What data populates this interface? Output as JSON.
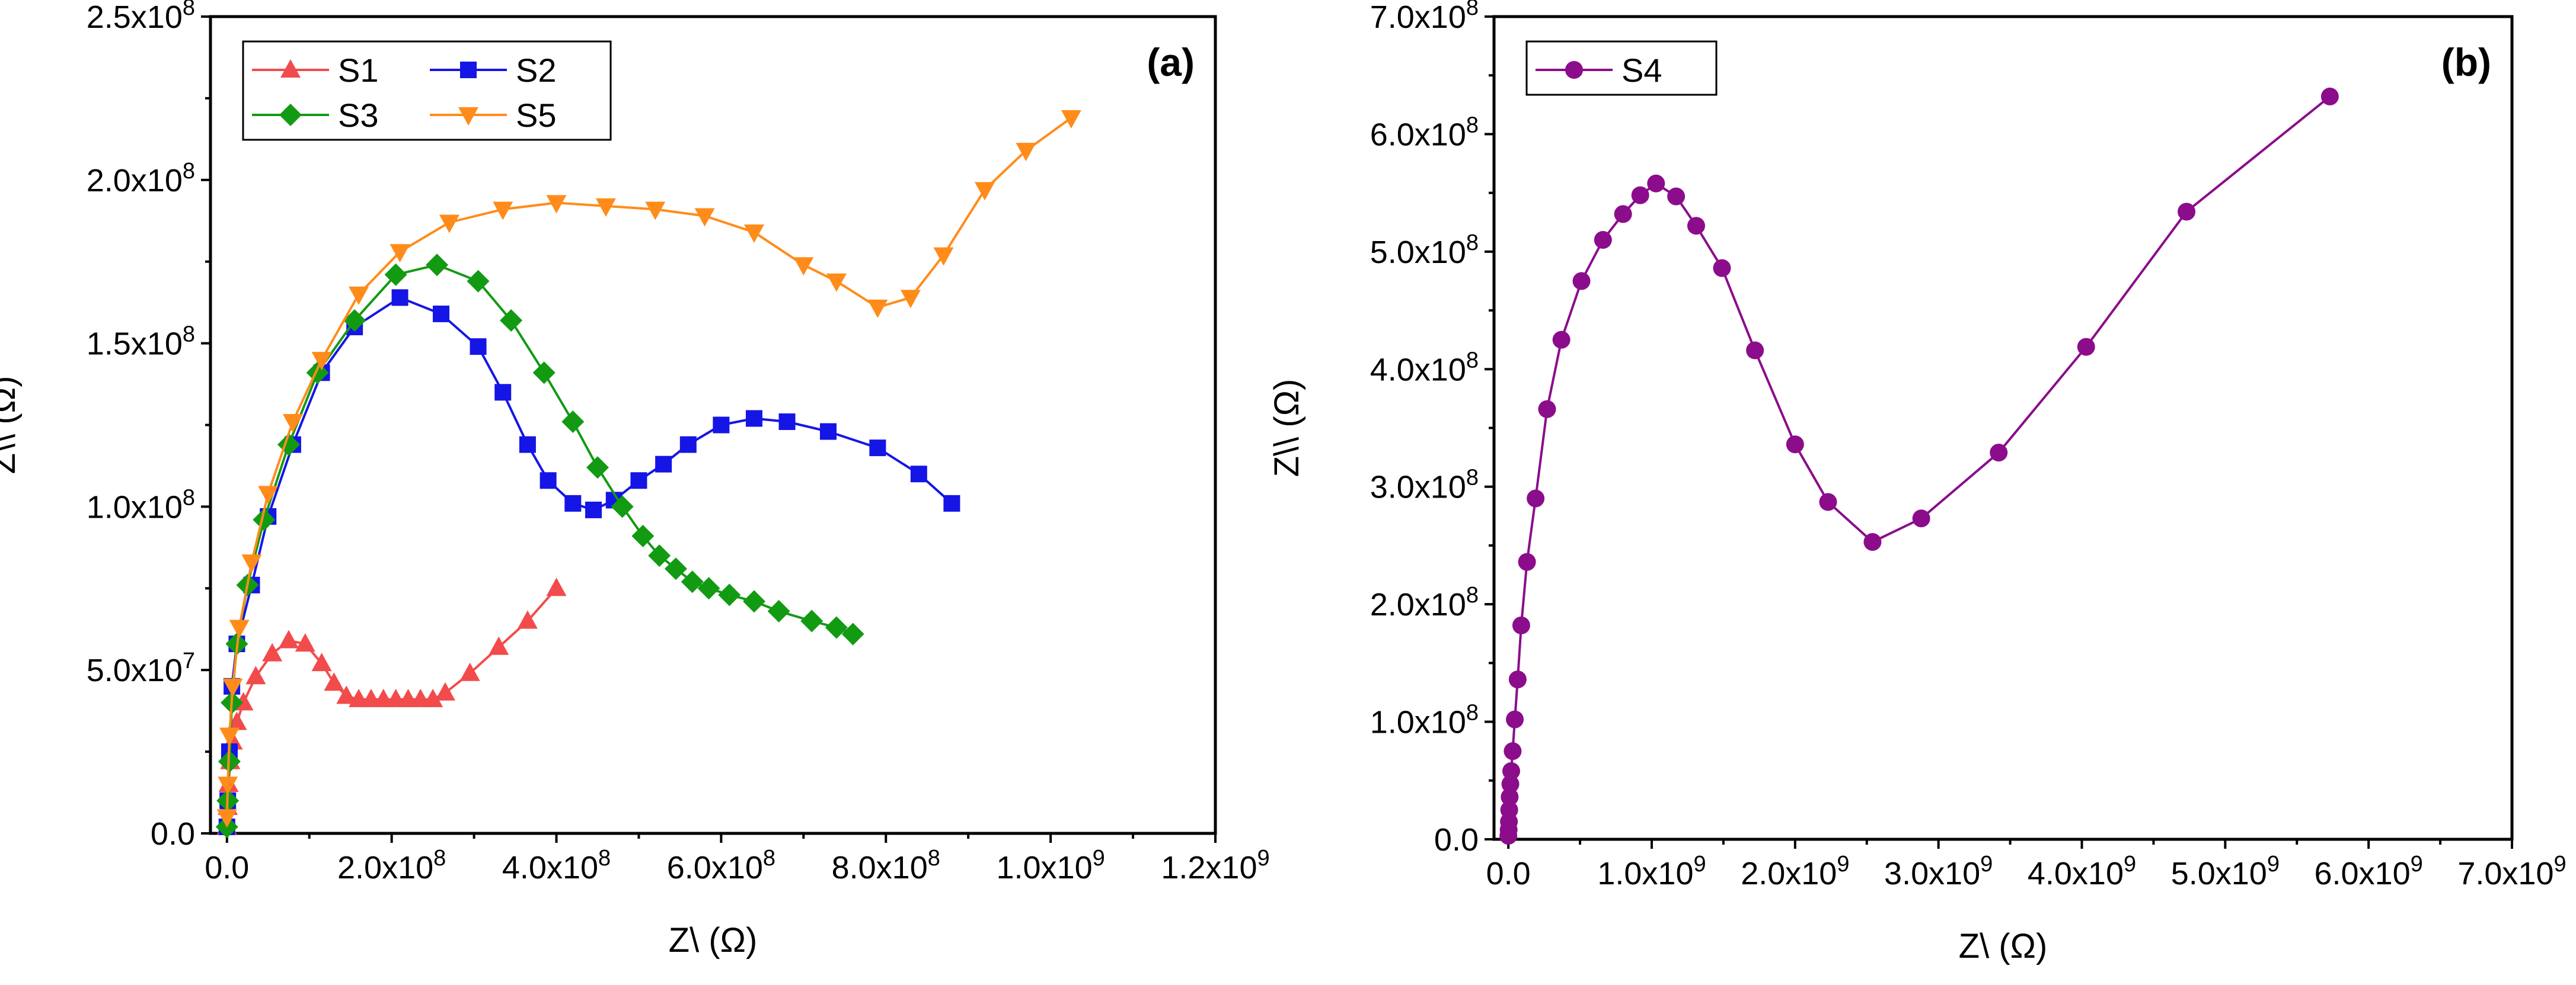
{
  "chart_data": [
    {
      "type": "line",
      "panel_label": "(a)",
      "xlabel": "Z\\ (Ω)",
      "ylabel": "Z\\\\ (Ω)",
      "xlim": [
        -20000000,
        1200000000
      ],
      "ylim": [
        0,
        250000000
      ],
      "x_ticks": [
        {
          "value": 0,
          "label": "0.0"
        },
        {
          "value": 200000000,
          "label": "2.0x10^8"
        },
        {
          "value": 400000000,
          "label": "4.0x10^8"
        },
        {
          "value": 600000000,
          "label": "6.0x10^8"
        },
        {
          "value": 800000000,
          "label": "8.0x10^8"
        },
        {
          "value": 1000000000,
          "label": "1.0x10^9"
        },
        {
          "value": 1200000000,
          "label": "1.2x10^9"
        }
      ],
      "y_ticks": [
        {
          "value": 0,
          "label": "0.0"
        },
        {
          "value": 50000000,
          "label": "5.0x10^7"
        },
        {
          "value": 100000000,
          "label": "1.0x10^8"
        },
        {
          "value": 150000000,
          "label": "1.5x10^8"
        },
        {
          "value": 200000000,
          "label": "2.0x10^8"
        },
        {
          "value": 250000000,
          "label": "2.5x10^8"
        }
      ],
      "legend_position": "top-left",
      "legend_columns": 2,
      "series": [
        {
          "name": "S1",
          "color": "#f24b4b",
          "marker": "triangle-up",
          "x": [
            0,
            1000000,
            2000000,
            4000000,
            7000000,
            12000000,
            20000000,
            35000000,
            55000000,
            75000000,
            95000000,
            115000000,
            130000000,
            145000000,
            160000000,
            175000000,
            190000000,
            205000000,
            220000000,
            235000000,
            250000000,
            265000000,
            295000000,
            330000000,
            365000000,
            400000000
          ],
          "y": [
            2000000,
            8000000,
            15000000,
            22000000,
            28000000,
            34000000,
            40000000,
            48000000,
            55000000,
            59000000,
            58000000,
            52000000,
            46000000,
            42000000,
            41000000,
            41000000,
            41000000,
            41000000,
            41000000,
            41000000,
            41000000,
            43000000,
            49000000,
            57000000,
            65000000,
            75000000
          ]
        },
        {
          "name": "S2",
          "color": "#1515e6",
          "marker": "square",
          "x": [
            0,
            1000000,
            3000000,
            6000000,
            12000000,
            30000000,
            50000000,
            80000000,
            115000000,
            155000000,
            210000000,
            260000000,
            305000000,
            335000000,
            365000000,
            390000000,
            420000000,
            445000000,
            470000000,
            500000000,
            530000000,
            560000000,
            600000000,
            640000000,
            680000000,
            730000000,
            790000000,
            840000000,
            880000000
          ],
          "y": [
            2000000,
            10000000,
            25000000,
            45000000,
            58000000,
            76000000,
            97000000,
            119000000,
            141000000,
            155000000,
            164000000,
            159000000,
            149000000,
            135000000,
            119000000,
            108000000,
            101000000,
            99000000,
            102000000,
            108000000,
            113000000,
            119000000,
            125000000,
            127000000,
            126000000,
            123000000,
            118000000,
            110000000,
            101000000
          ]
        },
        {
          "name": "S3",
          "color": "#139a13",
          "marker": "diamond",
          "x": [
            0,
            1000000,
            3000000,
            6000000,
            12000000,
            25000000,
            45000000,
            75000000,
            110000000,
            155000000,
            205000000,
            255000000,
            305000000,
            345000000,
            385000000,
            420000000,
            450000000,
            480000000,
            505000000,
            525000000,
            545000000,
            565000000,
            585000000,
            610000000,
            640000000,
            670000000,
            710000000,
            740000000,
            760000000
          ],
          "y": [
            2000000,
            10000000,
            22000000,
            40000000,
            58000000,
            76000000,
            96000000,
            119000000,
            141000000,
            157000000,
            171000000,
            174000000,
            169000000,
            157000000,
            141000000,
            126000000,
            112000000,
            100000000,
            91000000,
            85000000,
            81000000,
            77000000,
            75000000,
            73000000,
            71000000,
            68000000,
            65000000,
            63000000,
            61000000
          ]
        },
        {
          "name": "S5",
          "color": "#ff8c1a",
          "marker": "triangle-down",
          "x": [
            0,
            1000000,
            3000000,
            7000000,
            15000000,
            30000000,
            50000000,
            80000000,
            115000000,
            160000000,
            210000000,
            270000000,
            335000000,
            400000000,
            460000000,
            520000000,
            580000000,
            640000000,
            700000000,
            740000000,
            790000000,
            830000000,
            870000000,
            920000000,
            970000000,
            1025000000
          ],
          "y": [
            5000000,
            15000000,
            30000000,
            45000000,
            63000000,
            83000000,
            104000000,
            126000000,
            145000000,
            165000000,
            178000000,
            187000000,
            191000000,
            193000000,
            192000000,
            191000000,
            189000000,
            184000000,
            174000000,
            169000000,
            161000000,
            164000000,
            177000000,
            197000000,
            209000000,
            219000000
          ]
        }
      ]
    },
    {
      "type": "line",
      "panel_label": "(b)",
      "xlabel": "Z\\ (Ω)",
      "ylabel": "Z\\\\ (Ω)",
      "xlim": [
        -100000000,
        7000000000
      ],
      "ylim": [
        0,
        700000000
      ],
      "x_ticks": [
        {
          "value": 0,
          "label": "0.0"
        },
        {
          "value": 1000000000,
          "label": "1.0x10^9"
        },
        {
          "value": 2000000000,
          "label": "2.0x10^9"
        },
        {
          "value": 3000000000,
          "label": "3.0x10^9"
        },
        {
          "value": 4000000000,
          "label": "4.0x10^9"
        },
        {
          "value": 5000000000,
          "label": "5.0x10^9"
        },
        {
          "value": 6000000000,
          "label": "6.0x10^9"
        },
        {
          "value": 7000000000,
          "label": "7.0x10^9"
        }
      ],
      "y_ticks": [
        {
          "value": 0,
          "label": "0.0"
        },
        {
          "value": 100000000,
          "label": "1.0x10^8"
        },
        {
          "value": 200000000,
          "label": "2.0x10^8"
        },
        {
          "value": 300000000,
          "label": "3.0x10^8"
        },
        {
          "value": 400000000,
          "label": "4.0x10^8"
        },
        {
          "value": 500000000,
          "label": "5.0x10^8"
        },
        {
          "value": 600000000,
          "label": "6.0x10^8"
        },
        {
          "value": 700000000,
          "label": "7.0x10^8"
        }
      ],
      "legend_position": "top-left",
      "legend_columns": 1,
      "series": [
        {
          "name": "S4",
          "color": "#8b0d8b",
          "marker": "circle",
          "x": [
            0,
            2000000,
            4000000,
            6000000,
            9000000,
            14000000,
            20000000,
            30000000,
            45000000,
            65000000,
            90000000,
            130000000,
            190000000,
            270000000,
            370000000,
            510000000,
            660000000,
            800000000,
            920000000,
            1030000000,
            1170000000,
            1310000000,
            1490000000,
            1720000000,
            2000000000,
            2230000000,
            2540000000,
            2880000000,
            3420000000,
            4030000000,
            4730000000,
            5730000000
          ],
          "y": [
            3000000,
            8000000,
            15000000,
            25000000,
            36000000,
            47000000,
            58000000,
            75000000,
            102000000,
            136000000,
            182000000,
            236000000,
            290000000,
            366000000,
            425000000,
            475000000,
            510000000,
            532000000,
            548000000,
            558000000,
            547000000,
            522000000,
            486000000,
            416000000,
            336000000,
            287000000,
            253000000,
            273000000,
            329000000,
            419000000,
            534000000,
            632000000
          ]
        }
      ]
    }
  ]
}
